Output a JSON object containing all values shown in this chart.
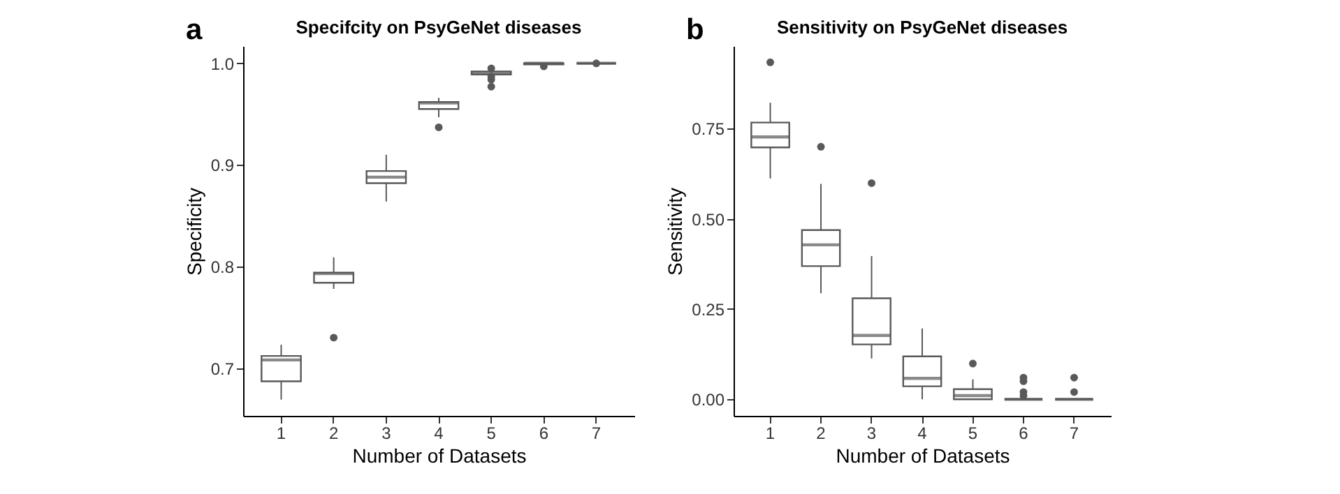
{
  "chart_data": [
    {
      "type": "box",
      "title": "Specifcity on PsyGeNet diseases",
      "xlabel": "Number of Datasets",
      "ylabel": "Specificity",
      "annotations": [
        "a"
      ],
      "categories": [
        "1",
        "2",
        "3",
        "4",
        "5",
        "6",
        "7"
      ],
      "ylim": [
        0.653,
        1.017
      ],
      "yticks": [
        0.7,
        0.8,
        0.9,
        {
          "value": 1,
          "label": "1.0"
        }
      ],
      "series": [
        {
          "color": "#595959",
          "boxes": [
            {
              "low": 0.669,
              "q1": 0.687,
              "median": 0.708,
              "q3": 0.712,
              "high": 0.723
            },
            {
              "low": 0.778,
              "q1": 0.784,
              "median": 0.793,
              "q3": 0.794,
              "high": 0.809,
              "outliers": [
                0.73
              ]
            },
            {
              "low": 0.864,
              "q1": 0.882,
              "median": 0.888,
              "q3": 0.894,
              "high": 0.91
            },
            {
              "low": 0.947,
              "q1": 0.955,
              "median": 0.961,
              "q3": 0.962,
              "high": 0.966,
              "outliers": [
                0.937
              ]
            },
            {
              "low": 0.989,
              "q1": 0.989,
              "median": 0.991,
              "q3": 0.992,
              "high": 0.993,
              "outliers": [
                0.977,
                0.984,
                0.987,
                0.995
              ]
            },
            {
              "low": 0.999,
              "q1": 0.999,
              "median": 1,
              "q3": 1,
              "high": 1,
              "outliers": [
                0.997
              ]
            },
            {
              "low": 1,
              "q1": 1,
              "median": 1,
              "q3": 1,
              "high": 1,
              "outliers": [
                1
              ]
            }
          ]
        }
      ]
    },
    {
      "type": "box",
      "title": "Sensitivity on PsyGeNet diseases",
      "xlabel": "Number of Datasets",
      "ylabel": "Sensitivity",
      "annotations": [
        "b"
      ],
      "categories": [
        "1",
        "2",
        "3",
        "4",
        "5",
        "6",
        "7"
      ],
      "ylim": [
        -0.046,
        0.979
      ],
      "yticks": [
        {
          "value": 0,
          "label": "0.00"
        },
        0.25,
        {
          "value": 0.5,
          "label": "0.50"
        },
        0.75
      ],
      "series": [
        {
          "color": "#595959",
          "boxes": [
            {
              "low": 0.612,
              "q1": 0.698,
              "median": 0.727,
              "q3": 0.767,
              "high": 0.822,
              "outliers": [
                0.934
              ]
            },
            {
              "low": 0.294,
              "q1": 0.369,
              "median": 0.428,
              "q3": 0.469,
              "high": 0.597,
              "outliers": [
                0.7
              ]
            },
            {
              "low": 0.113,
              "q1": 0.152,
              "median": 0.177,
              "q3": 0.28,
              "high": 0.397,
              "outliers": [
                0.599
              ]
            },
            {
              "low": 0,
              "q1": 0.036,
              "median": 0.058,
              "q3": 0.119,
              "high": 0.196
            },
            {
              "low": 0,
              "q1": 0,
              "median": 0.01,
              "q3": 0.028,
              "high": 0.055,
              "outliers": [
                0.099
              ]
            },
            {
              "low": 0,
              "q1": 0,
              "median": 0,
              "q3": 0,
              "high": 0,
              "outliers": [
                0.01,
                0.02,
                0.05,
                0.06
              ]
            },
            {
              "low": 0,
              "q1": 0,
              "median": 0,
              "q3": 0,
              "high": 0,
              "outliers": [
                0.02,
                0.06
              ]
            }
          ]
        }
      ]
    }
  ]
}
